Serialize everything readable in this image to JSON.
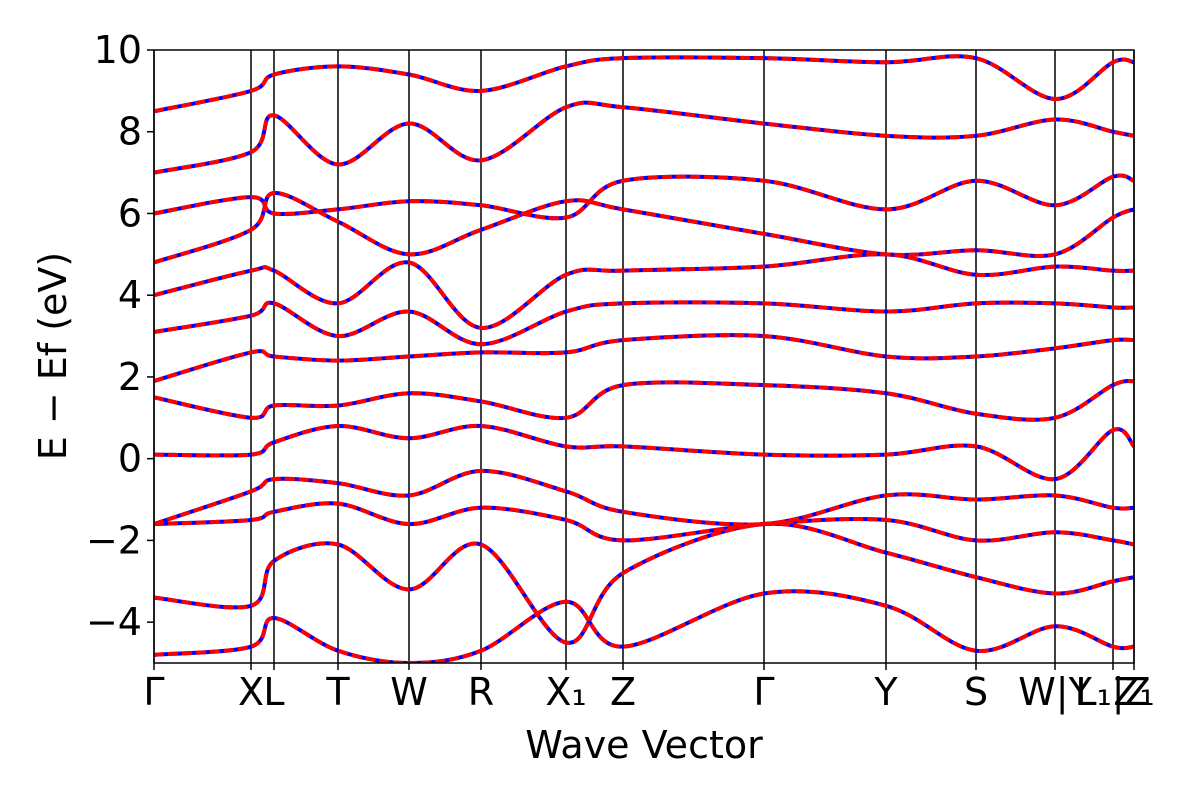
{
  "chart_data": {
    "type": "line",
    "xlabel": "Wave Vector",
    "ylabel": "E − Ef (eV)",
    "xlim": [
      0,
      9.8
    ],
    "ylim": [
      -5,
      10
    ],
    "xticks": [
      {
        "value": 0,
        "label": "Γ"
      },
      {
        "value": 0.97,
        "label": "X"
      },
      {
        "value": 1.2,
        "label": "L"
      },
      {
        "value": 1.84,
        "label": "T"
      },
      {
        "value": 2.55,
        "label": "W"
      },
      {
        "value": 3.27,
        "label": "R"
      },
      {
        "value": 4.12,
        "label": "X₁"
      },
      {
        "value": 4.69,
        "label": "Z"
      },
      {
        "value": 6.1,
        "label": "Γ"
      },
      {
        "value": 7.32,
        "label": "Y"
      },
      {
        "value": 8.22,
        "label": "S"
      },
      {
        "value": 9.01,
        "label": "W|Y"
      },
      {
        "value": 9.59,
        "label": "L₁|Z"
      },
      {
        "value": 9.8,
        "label": "Z₁"
      }
    ],
    "yticks": [
      {
        "value": -4,
        "label": "−4"
      },
      {
        "value": -2,
        "label": "−2"
      },
      0,
      2,
      4,
      6,
      8,
      10
    ],
    "x": [
      0,
      0.97,
      1.2,
      1.84,
      2.55,
      3.27,
      4.12,
      4.69,
      6.1,
      7.32,
      8.22,
      9.01,
      9.59,
      9.8
    ],
    "grid": true,
    "series": [
      {
        "color": "#0000ff",
        "dashed": false
      },
      {
        "color": "#ff0000",
        "dashed": true
      }
    ],
    "bands": [
      [
        -4.8,
        -4.6,
        -3.9,
        -4.7,
        -5.0,
        -4.7,
        -3.5,
        -4.6,
        -3.3,
        -3.6,
        -4.7,
        -4.1,
        -4.6,
        -4.6
      ],
      [
        -3.4,
        -3.6,
        -2.5,
        -2.1,
        -3.2,
        -2.1,
        -4.5,
        -2.8,
        -1.6,
        -2.3,
        -2.9,
        -3.3,
        -3.0,
        -2.9
      ],
      [
        -1.6,
        -1.5,
        -1.3,
        -1.1,
        -1.6,
        -1.2,
        -1.5,
        -2.0,
        -1.6,
        -1.5,
        -2.0,
        -1.8,
        -2.0,
        -2.1
      ],
      [
        -1.6,
        -0.8,
        -0.5,
        -0.6,
        -0.9,
        -0.3,
        -0.8,
        -1.3,
        -1.6,
        -0.9,
        -1.0,
        -0.9,
        -1.2,
        -1.2
      ],
      [
        0.1,
        0.1,
        0.4,
        0.8,
        0.5,
        0.8,
        0.3,
        0.3,
        0.1,
        0.1,
        0.3,
        -0.5,
        0.7,
        0.3
      ],
      [
        1.5,
        1.0,
        1.3,
        1.3,
        1.6,
        1.4,
        1.0,
        1.8,
        1.8,
        1.6,
        1.1,
        1.0,
        1.8,
        1.9
      ],
      [
        1.9,
        2.6,
        2.5,
        2.4,
        2.5,
        2.6,
        2.6,
        2.9,
        3.0,
        2.5,
        2.5,
        2.7,
        2.9,
        2.9
      ],
      [
        3.1,
        3.5,
        3.8,
        3.0,
        3.6,
        2.8,
        3.6,
        3.8,
        3.8,
        3.6,
        3.8,
        3.8,
        3.7,
        3.7
      ],
      [
        4.0,
        4.6,
        4.6,
        3.8,
        4.8,
        3.2,
        4.5,
        4.6,
        4.7,
        5.0,
        4.5,
        4.7,
        4.6,
        4.6
      ],
      [
        4.8,
        5.6,
        6.5,
        5.8,
        5.0,
        5.6,
        6.3,
        6.1,
        5.5,
        5.0,
        5.1,
        5.0,
        5.9,
        6.1
      ],
      [
        6.0,
        6.4,
        6.0,
        6.1,
        6.3,
        6.2,
        5.9,
        6.8,
        6.8,
        6.1,
        6.8,
        6.2,
        6.9,
        6.8
      ],
      [
        7.0,
        7.5,
        8.4,
        7.2,
        8.2,
        7.3,
        8.6,
        8.6,
        8.2,
        7.9,
        7.9,
        8.3,
        8.0,
        7.9
      ],
      [
        8.5,
        9.0,
        9.4,
        9.6,
        9.4,
        9.0,
        9.6,
        9.8,
        9.8,
        9.7,
        9.8,
        8.8,
        9.7,
        9.7
      ]
    ]
  }
}
